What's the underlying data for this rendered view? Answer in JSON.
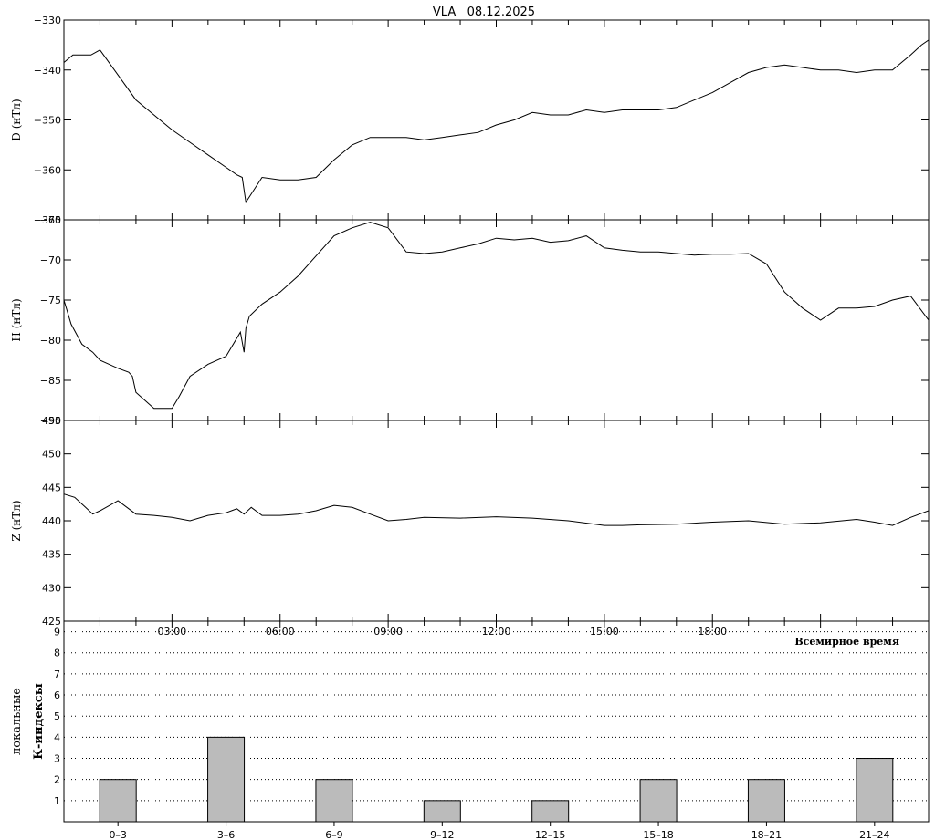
{
  "title": "VLA   08.12.2025",
  "chart_data": [
    {
      "type": "line",
      "ylabel": "D (нТл)",
      "ylim": [
        -370,
        -330
      ],
      "yticks": [
        -330,
        -340,
        -350,
        -360,
        -370
      ],
      "x_unit": "hours UT",
      "xlim": [
        0,
        24
      ],
      "series": [
        {
          "x": [
            0,
            0.25,
            0.5,
            0.75,
            1.0,
            1.5,
            2.0,
            2.5,
            3.0,
            3.5,
            4.0,
            4.5,
            4.8,
            4.95,
            5.05,
            5.5,
            6.0,
            6.5,
            7.0,
            7.5,
            8.0,
            8.5,
            9.0,
            9.5,
            10.0,
            10.5,
            11.0,
            11.5,
            12.0,
            12.5,
            13.0,
            13.5,
            14.0,
            14.5,
            15.0,
            15.5,
            16.0,
            16.5,
            17.0,
            17.5,
            18.0,
            18.5,
            19.0,
            19.5,
            20.0,
            20.5,
            21.0,
            21.5,
            22.0,
            22.5,
            23.0,
            23.5,
            23.8,
            24.0
          ],
          "values": [
            -338.5,
            -337,
            -337,
            -337,
            -336,
            -341,
            -346,
            -349,
            -352,
            -354.5,
            -357,
            -359.5,
            -361,
            -361.5,
            -366.5,
            -361.5,
            -362,
            -362,
            -361.5,
            -358,
            -355,
            -353.5,
            -353.5,
            -353.5,
            -354,
            -353.5,
            -353,
            -352.5,
            -351,
            -350,
            -348.5,
            -349,
            -349,
            -348,
            -348.5,
            -348,
            -348,
            -348,
            -347.5,
            -346,
            -344.5,
            -342.5,
            -340.5,
            -339.5,
            -339,
            -339.5,
            -340,
            -340,
            -340.5,
            -340,
            -340,
            -337,
            -335,
            -334
          ]
        }
      ]
    },
    {
      "type": "line",
      "ylabel": "H (нТл)",
      "ylim": [
        -90,
        -65
      ],
      "yticks": [
        -65,
        -70,
        -75,
        -80,
        -85,
        -90
      ],
      "x_unit": "hours UT",
      "xlim": [
        0,
        24
      ],
      "series": [
        {
          "x": [
            0,
            0.2,
            0.5,
            0.8,
            1.0,
            1.5,
            1.8,
            1.9,
            2.0,
            2.5,
            3.0,
            3.2,
            3.5,
            4.0,
            4.5,
            4.9,
            5.0,
            5.05,
            5.15,
            5.5,
            6.0,
            6.5,
            7.0,
            7.5,
            8.0,
            8.5,
            9.0,
            9.5,
            10.0,
            10.5,
            11.0,
            11.5,
            12.0,
            12.5,
            13.0,
            13.5,
            14.0,
            14.5,
            15.0,
            15.5,
            16.0,
            16.5,
            17.0,
            17.5,
            18.0,
            18.5,
            19.0,
            19.5,
            20.0,
            20.5,
            21.0,
            21.5,
            22.0,
            22.5,
            23.0,
            23.5,
            24.0
          ],
          "values": [
            -75,
            -78,
            -80.5,
            -81.5,
            -82.5,
            -83.5,
            -84,
            -84.5,
            -86.5,
            -88.5,
            -88.5,
            -87,
            -84.5,
            -83,
            -82,
            -79,
            -81.5,
            -78.5,
            -77,
            -75.5,
            -74,
            -72,
            -69.5,
            -67,
            -66,
            -65.3,
            -66,
            -69,
            -69.2,
            -69,
            -68.5,
            -68,
            -67.3,
            -67.5,
            -67.3,
            -67.8,
            -67.6,
            -67,
            -68.5,
            -68.8,
            -69,
            -69,
            -69.2,
            -69.4,
            -69.3,
            -69.3,
            -69.2,
            -70.5,
            -74,
            -76,
            -77.5,
            -76,
            -76,
            -75.8,
            -75,
            -74.5,
            -77.5
          ]
        }
      ]
    },
    {
      "type": "line",
      "ylabel": "Z (нТл)",
      "ylim": [
        425,
        455
      ],
      "yticks": [
        455,
        450,
        445,
        440,
        435,
        430,
        425
      ],
      "x_unit": "hours UT",
      "xlim": [
        0,
        24
      ],
      "series": [
        {
          "x": [
            0,
            0.3,
            0.6,
            0.8,
            1.0,
            1.5,
            2.0,
            2.5,
            3.0,
            3.5,
            4.0,
            4.5,
            4.8,
            5.0,
            5.2,
            5.5,
            6.0,
            6.5,
            7.0,
            7.5,
            8.0,
            8.5,
            9.0,
            9.5,
            10.0,
            11.0,
            12.0,
            13.0,
            14.0,
            15.0,
            15.5,
            16.0,
            17.0,
            18.0,
            19.0,
            20.0,
            21.0,
            22.0,
            22.5,
            23.0,
            23.5,
            24.0
          ],
          "values": [
            444,
            443.5,
            442,
            441,
            441.5,
            443,
            441,
            440.8,
            440.5,
            440,
            440.8,
            441.2,
            441.8,
            441,
            442,
            440.8,
            440.8,
            441,
            441.5,
            442.3,
            442,
            441,
            440,
            440.2,
            440.5,
            440.4,
            440.6,
            440.4,
            440,
            439.3,
            439.3,
            439.4,
            439.5,
            439.8,
            440,
            439.5,
            439.7,
            440.2,
            439.8,
            439.3,
            440.5,
            441.5
          ]
        }
      ]
    },
    {
      "type": "bar",
      "ylabel": "локальные К-индексы",
      "xlabel": "Всемирное время",
      "ylim": [
        0,
        9.5
      ],
      "yticks": [
        1,
        2,
        3,
        4,
        5,
        6,
        7,
        8,
        9
      ],
      "x_tick_labels": [
        "03:00",
        "06:00",
        "09:00",
        "12:00",
        "15:00",
        "18:00"
      ],
      "categories": [
        "0–3",
        "3–6",
        "6–9",
        "9–12",
        "12–15",
        "15–18",
        "18–21",
        "21–24"
      ],
      "values": [
        2,
        4,
        2,
        1,
        1,
        2,
        2,
        3
      ],
      "grid": "dotted horizontal"
    }
  ]
}
